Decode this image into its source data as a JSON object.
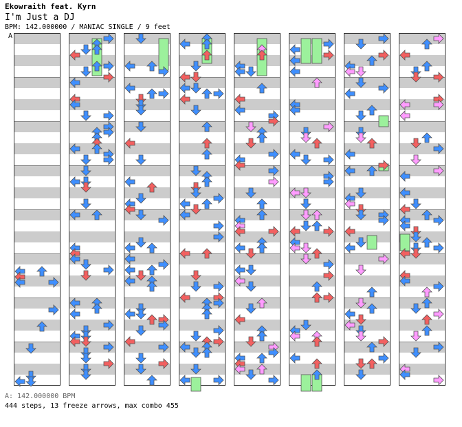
{
  "header": {
    "artist": "Ekowraith feat. Kyrn",
    "title": "I'm Just a DJ",
    "info": "BPM: 142.000000 / MANIAC SINGLE / 9 feet"
  },
  "marker": "A",
  "footer": {
    "bpm": "A: 142.000000 BPM",
    "stats": "444 steps, 13 freeze arrows, max combo 455"
  },
  "colors": {
    "quarter": "#f26060",
    "eighth": "#3f8fff",
    "sixteenth": "#ff9cff",
    "freeze": "#9cf19c",
    "stripe": "#cccccc"
  },
  "icon_names": {
    "left": "left-arrow-icon",
    "down": "down-arrow-icon",
    "up": "up-arrow-icon",
    "right": "right-arrow-icon",
    "freeze": "freeze-hold-bar"
  }
}
